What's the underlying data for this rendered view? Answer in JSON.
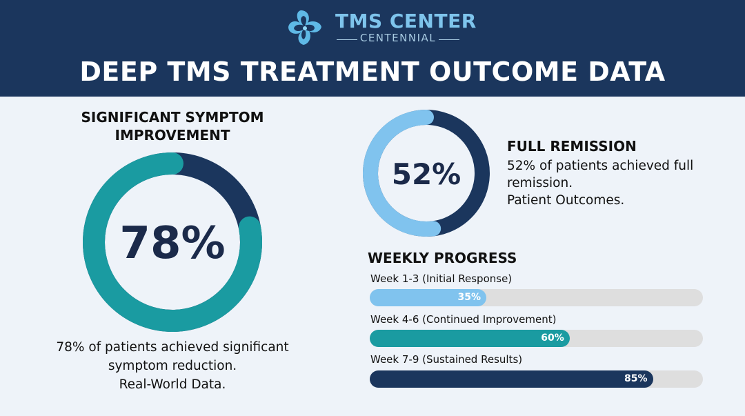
{
  "header": {
    "brand_name": "TMS CENTER",
    "brand_sub": "CENTENNIAL",
    "logo_icon": "cross-swirl-logo-icon",
    "title": "DEEP TMS TREATMENT OUTCOME DATA",
    "bg_color": "#1b365d",
    "accent_color": "#7ec4ec"
  },
  "significant": {
    "heading": "SIGNIFICANT SYMPTOM IMPROVEMENT",
    "desc_line1": "78% of patients achieved significant",
    "desc_line2": "symptom reduction.",
    "desc_line3": "Real-World Data."
  },
  "remission": {
    "heading": "FULL REMISSION",
    "desc_line1": "52% of patients achieved full remission.",
    "desc_line2": "Patient Outcomes."
  },
  "weekly": {
    "heading": "WEEKLY PROGRESS"
  },
  "chart_data": [
    {
      "type": "pie",
      "style": "donut",
      "value": 78,
      "label": "78%",
      "max": 100,
      "colors": {
        "value": "#1a9ba1",
        "remainder": "#1b365d"
      }
    },
    {
      "type": "pie",
      "style": "donut",
      "value": 52,
      "label": "52%",
      "max": 100,
      "colors": {
        "value": "#80c3ee",
        "remainder": "#1b365d"
      }
    },
    {
      "type": "bar",
      "orientation": "horizontal",
      "xlim": [
        0,
        100
      ],
      "categories": [
        "Week 1-3 (Initial Response)",
        "Week 4-6 (Continued Improvement)",
        "Week 7-9 (Sustained Results)"
      ],
      "values": [
        35,
        60,
        85
      ],
      "value_labels": [
        "35%",
        "60%",
        "85%"
      ],
      "colors": [
        "#80c3ee",
        "#1a9ba1",
        "#1b365d"
      ],
      "track_color": "#dedede"
    }
  ]
}
